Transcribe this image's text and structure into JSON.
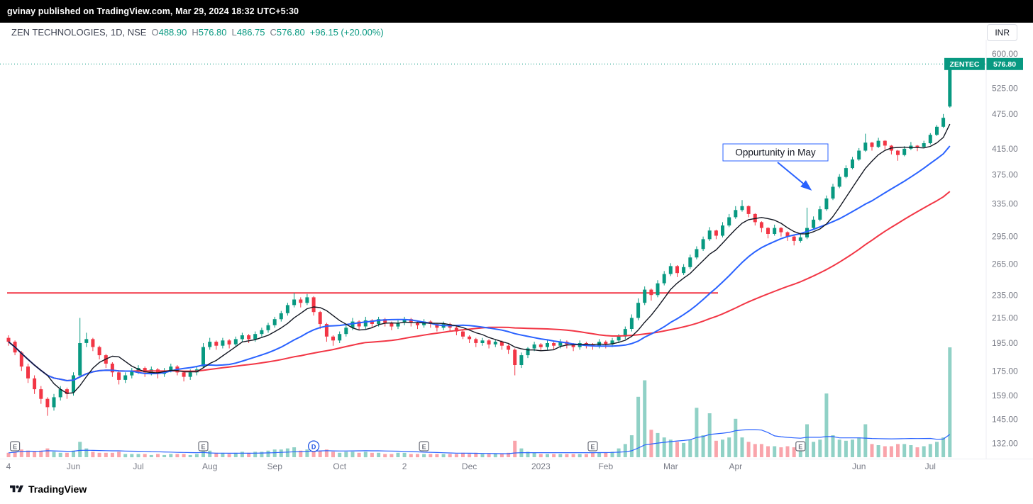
{
  "attribution": {
    "text": "gvinay published on TradingView.com, Mar 29, 2024 18:32 UTC+5:30"
  },
  "header": {
    "symbol_title": "ZEN TECHNOLOGIES, 1D, NSE",
    "ohlc": [
      {
        "k": "O",
        "v": "488.90"
      },
      {
        "k": "H",
        "v": "576.80"
      },
      {
        "k": "L",
        "v": "486.75"
      },
      {
        "k": "C",
        "v": "576.80"
      }
    ],
    "change": "+96.15 (+20.00%)",
    "currency_button": "INR"
  },
  "price_label": {
    "ticker": "ZENTEC",
    "price": "576.80"
  },
  "footer": {
    "brand": "TradingView"
  },
  "colors": {
    "up": "#089981",
    "down": "#f23645",
    "volume_up": "rgba(8,153,129,0.45)",
    "volume_down": "rgba(242,54,69,0.45)",
    "accent_blue": "#2962ff",
    "axis_text": "#787b86"
  },
  "chart_data": {
    "type": "candlestick",
    "title": "ZEN TECHNOLOGIES, 1D, NSE",
    "scale": "log",
    "last_price": 576.8,
    "support_line_price": 237,
    "price_axis_ticks": [
      600,
      525,
      475,
      415,
      375,
      335,
      295,
      265,
      235,
      215,
      195,
      175,
      159,
      145,
      132
    ],
    "time_axis_labels": [
      {
        "label": "4",
        "i": 0
      },
      {
        "label": "Jun",
        "i": 10
      },
      {
        "label": "Jul",
        "i": 20
      },
      {
        "label": "Aug",
        "i": 31
      },
      {
        "label": "Sep",
        "i": 41
      },
      {
        "label": "Oct",
        "i": 51
      },
      {
        "label": "2",
        "i": 61
      },
      {
        "label": "Dec",
        "i": 71
      },
      {
        "label": "2023",
        "i": 82
      },
      {
        "label": "Feb",
        "i": 92
      },
      {
        "label": "Mar",
        "i": 102
      },
      {
        "label": "Apr",
        "i": 112
      },
      {
        "label": "Jun",
        "i": 131
      },
      {
        "label": "Jul",
        "i": 142
      }
    ],
    "ma": {
      "fast": {
        "period": 7,
        "color": "#131722"
      },
      "mid": {
        "period": 20,
        "color": "#2962ff"
      },
      "slow": {
        "period": 45,
        "color": "#f23645"
      },
      "volume": {
        "period": 20,
        "color": "#2962ff"
      }
    },
    "markers": [
      {
        "label": "E",
        "shape": "square",
        "i": 1
      },
      {
        "label": "E",
        "shape": "square",
        "i": 30
      },
      {
        "label": "D",
        "shape": "circle",
        "i": 47
      },
      {
        "label": "E",
        "shape": "square",
        "i": 64
      },
      {
        "label": "E",
        "shape": "square",
        "i": 90
      },
      {
        "label": "E",
        "shape": "square",
        "i": 122
      }
    ],
    "annotation": {
      "text": "Oppurtunity in May"
    },
    "candles": [
      [
        199,
        201,
        193,
        196,
        4
      ],
      [
        196,
        197,
        186,
        188,
        5
      ],
      [
        188,
        189,
        175,
        178,
        7
      ],
      [
        178,
        180,
        167,
        170,
        6
      ],
      [
        170,
        172,
        160,
        163,
        5
      ],
      [
        163,
        165,
        154,
        157,
        6
      ],
      [
        157,
        158,
        147,
        152,
        8
      ],
      [
        152,
        160,
        150,
        158,
        5
      ],
      [
        158,
        165,
        156,
        163,
        4
      ],
      [
        163,
        164,
        157,
        160,
        4
      ],
      [
        161,
        174,
        159,
        172,
        6
      ],
      [
        172,
        215,
        171,
        195,
        14
      ],
      [
        195,
        203,
        192,
        198,
        8
      ],
      [
        198,
        199,
        189,
        192,
        5
      ],
      [
        192,
        193,
        183,
        186,
        4
      ],
      [
        186,
        187,
        177,
        180,
        4
      ],
      [
        180,
        181,
        171,
        174,
        4
      ],
      [
        174,
        175,
        166,
        169,
        5
      ],
      [
        169,
        174,
        167,
        172,
        3
      ],
      [
        172,
        177,
        170,
        175,
        3
      ],
      [
        175,
        179,
        173,
        177,
        3
      ],
      [
        177,
        178,
        171,
        174,
        3
      ],
      [
        174,
        178,
        172,
        176,
        2
      ],
      [
        176,
        177,
        170,
        173,
        3
      ],
      [
        173,
        177,
        171,
        175,
        2
      ],
      [
        175,
        180,
        174,
        178,
        3
      ],
      [
        178,
        179,
        172,
        174,
        3
      ],
      [
        174,
        175,
        168,
        171,
        3
      ],
      [
        171,
        176,
        169,
        174,
        2
      ],
      [
        174,
        178,
        172,
        176,
        3
      ],
      [
        178,
        195,
        177,
        192,
        9
      ],
      [
        192,
        199,
        190,
        196,
        6
      ],
      [
        196,
        197,
        190,
        193,
        4
      ],
      [
        193,
        199,
        191,
        197,
        4
      ],
      [
        197,
        198,
        191,
        194,
        3
      ],
      [
        194,
        200,
        192,
        198,
        4
      ],
      [
        198,
        203,
        196,
        201,
        5
      ],
      [
        201,
        202,
        195,
        198,
        4
      ],
      [
        198,
        204,
        196,
        202,
        5
      ],
      [
        202,
        207,
        200,
        205,
        5
      ],
      [
        205,
        211,
        203,
        209,
        6
      ],
      [
        209,
        216,
        207,
        214,
        7
      ],
      [
        214,
        221,
        212,
        219,
        7
      ],
      [
        219,
        228,
        217,
        226,
        8
      ],
      [
        226,
        237,
        224,
        231,
        9
      ],
      [
        231,
        233,
        224,
        228,
        6
      ],
      [
        228,
        236,
        226,
        233,
        7
      ],
      [
        233,
        234,
        217,
        220,
        7
      ],
      [
        220,
        221,
        206,
        210,
        6
      ],
      [
        210,
        211,
        196,
        200,
        7
      ],
      [
        200,
        201,
        193,
        197,
        5
      ],
      [
        197,
        204,
        195,
        202,
        4
      ],
      [
        202,
        209,
        200,
        207,
        5
      ],
      [
        207,
        215,
        205,
        212,
        5
      ],
      [
        212,
        213,
        205,
        208,
        4
      ],
      [
        208,
        216,
        206,
        213,
        5
      ],
      [
        213,
        214,
        207,
        210,
        4
      ],
      [
        210,
        216,
        208,
        214,
        4
      ],
      [
        214,
        215,
        208,
        211,
        3
      ],
      [
        211,
        212,
        205,
        208,
        3
      ],
      [
        208,
        213,
        206,
        211,
        4
      ],
      [
        211,
        216,
        209,
        214,
        4
      ],
      [
        214,
        215,
        208,
        211,
        3
      ],
      [
        211,
        212,
        206,
        209,
        3
      ],
      [
        209,
        214,
        207,
        212,
        3
      ],
      [
        212,
        213,
        207,
        210,
        3
      ],
      [
        210,
        211,
        204,
        207,
        3
      ],
      [
        207,
        212,
        205,
        210,
        3
      ],
      [
        210,
        211,
        204,
        207,
        3
      ],
      [
        207,
        208,
        201,
        204,
        3
      ],
      [
        204,
        205,
        198,
        200,
        4
      ],
      [
        200,
        201,
        195,
        198,
        3
      ],
      [
        198,
        199,
        192,
        195,
        4
      ],
      [
        195,
        199,
        193,
        197,
        3
      ],
      [
        197,
        198,
        191,
        194,
        3
      ],
      [
        194,
        198,
        192,
        196,
        3
      ],
      [
        196,
        197,
        190,
        193,
        3
      ],
      [
        193,
        194,
        187,
        190,
        4
      ],
      [
        190,
        191,
        172,
        179,
        15
      ],
      [
        179,
        188,
        177,
        186,
        8
      ],
      [
        186,
        192,
        184,
        191,
        5
      ],
      [
        191,
        196,
        189,
        194,
        4
      ],
      [
        194,
        195,
        189,
        192,
        3
      ],
      [
        192,
        197,
        190,
        195,
        3
      ],
      [
        195,
        196,
        190,
        193,
        3
      ],
      [
        193,
        198,
        191,
        196,
        3
      ],
      [
        196,
        197,
        191,
        194,
        3
      ],
      [
        194,
        195,
        189,
        192,
        3
      ],
      [
        192,
        197,
        190,
        195,
        3
      ],
      [
        195,
        196,
        191,
        194,
        3
      ],
      [
        194,
        195,
        190,
        193,
        4
      ],
      [
        193,
        198,
        191,
        196,
        4
      ],
      [
        196,
        197,
        191,
        194,
        4
      ],
      [
        194,
        199,
        192,
        197,
        5
      ],
      [
        197,
        202,
        195,
        200,
        8
      ],
      [
        200,
        208,
        198,
        206,
        12
      ],
      [
        206,
        218,
        204,
        215,
        20
      ],
      [
        215,
        232,
        213,
        228,
        55
      ],
      [
        228,
        243,
        226,
        240,
        70
      ],
      [
        240,
        241,
        230,
        235,
        25
      ],
      [
        235,
        249,
        233,
        246,
        22
      ],
      [
        246,
        258,
        244,
        255,
        18
      ],
      [
        255,
        266,
        253,
        263,
        16
      ],
      [
        263,
        264,
        252,
        256,
        14
      ],
      [
        256,
        265,
        254,
        262,
        13
      ],
      [
        262,
        275,
        260,
        272,
        16
      ],
      [
        272,
        284,
        270,
        281,
        45
      ],
      [
        281,
        295,
        279,
        292,
        20
      ],
      [
        292,
        306,
        290,
        302,
        40
      ],
      [
        302,
        303,
        292,
        296,
        15
      ],
      [
        296,
        312,
        294,
        308,
        16
      ],
      [
        308,
        322,
        306,
        318,
        18
      ],
      [
        318,
        332,
        316,
        327,
        35
      ],
      [
        327,
        340,
        325,
        332,
        18
      ],
      [
        332,
        333,
        318,
        322,
        14
      ],
      [
        322,
        323,
        308,
        312,
        12
      ],
      [
        312,
        313,
        300,
        305,
        12
      ],
      [
        305,
        306,
        293,
        298,
        10
      ],
      [
        298,
        309,
        296,
        305,
        10
      ],
      [
        305,
        306,
        295,
        300,
        9
      ],
      [
        300,
        301,
        290,
        295,
        10
      ],
      [
        295,
        296,
        285,
        290,
        9
      ],
      [
        290,
        298,
        288,
        294,
        10
      ],
      [
        294,
        330,
        292,
        305,
        30
      ],
      [
        305,
        319,
        303,
        315,
        14
      ],
      [
        315,
        332,
        313,
        328,
        16
      ],
      [
        328,
        346,
        326,
        342,
        58
      ],
      [
        342,
        362,
        340,
        358,
        20
      ],
      [
        358,
        376,
        356,
        372,
        16
      ],
      [
        372,
        389,
        370,
        385,
        15
      ],
      [
        385,
        402,
        383,
        398,
        16
      ],
      [
        398,
        416,
        396,
        412,
        18
      ],
      [
        412,
        440,
        410,
        425,
        30
      ],
      [
        425,
        426,
        412,
        418,
        12
      ],
      [
        418,
        433,
        416,
        428,
        11
      ],
      [
        428,
        429,
        414,
        420,
        10
      ],
      [
        420,
        421,
        406,
        412,
        10
      ],
      [
        412,
        413,
        396,
        405,
        12
      ],
      [
        405,
        419,
        403,
        415,
        12
      ],
      [
        415,
        426,
        413,
        420,
        11
      ],
      [
        420,
        421,
        411,
        418,
        9
      ],
      [
        418,
        428,
        416,
        424,
        10
      ],
      [
        424,
        441,
        422,
        438,
        12
      ],
      [
        438,
        455,
        436,
        452,
        14
      ],
      [
        452,
        475,
        450,
        468,
        18
      ],
      [
        488.9,
        576.8,
        486.75,
        576.8,
        100
      ]
    ]
  }
}
